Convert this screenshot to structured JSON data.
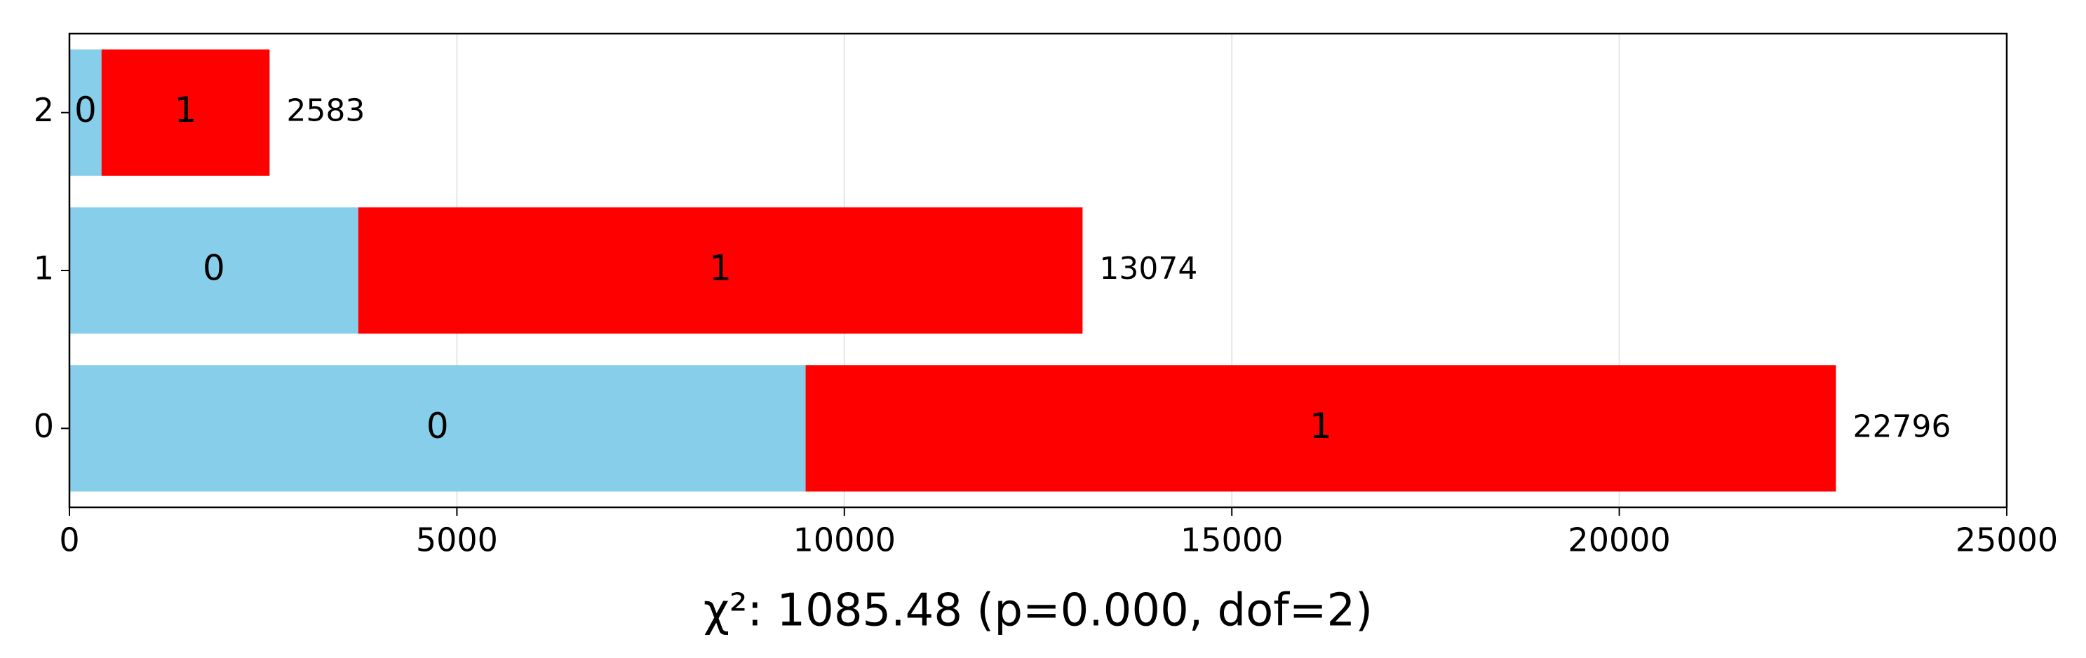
{
  "chart_data": {
    "type": "stacked-barh",
    "xlabel": "χ²: 1085.48 (p=0.000, dof=2)",
    "categories": [
      "0",
      "1",
      "2"
    ],
    "series": [
      {
        "name": "0",
        "color": "#87ceeb",
        "values": [
          9500,
          3727,
          414
        ]
      },
      {
        "name": "1",
        "color": "#ff0000",
        "values": [
          13296,
          9347,
          2169
        ]
      }
    ],
    "totals": [
      22796,
      13074,
      2583
    ],
    "xlim": [
      0,
      25000
    ],
    "xticks": [
      0,
      5000,
      10000,
      15000,
      20000,
      25000
    ],
    "grid": true
  }
}
